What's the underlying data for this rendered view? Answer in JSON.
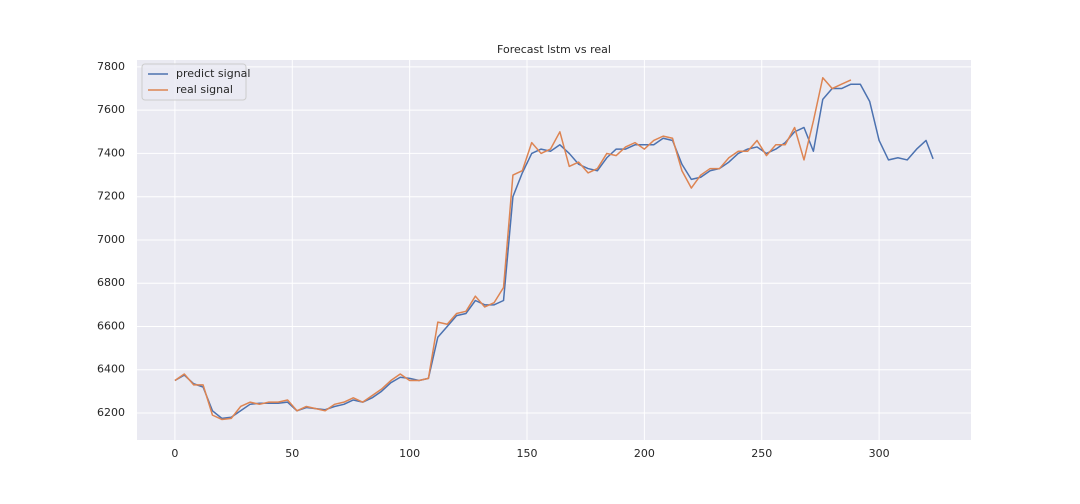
{
  "chart_data": {
    "type": "line",
    "title": "Forecast lstm vs real",
    "x": [
      0,
      4,
      8,
      12,
      16,
      20,
      24,
      28,
      32,
      36,
      40,
      44,
      48,
      52,
      56,
      60,
      64,
      68,
      72,
      76,
      80,
      84,
      88,
      92,
      96,
      100,
      104,
      108,
      112,
      116,
      120,
      124,
      128,
      132,
      136,
      140,
      144,
      148,
      152,
      156,
      160,
      164,
      168,
      172,
      176,
      180,
      184,
      188,
      192,
      196,
      200,
      204,
      208,
      212,
      216,
      220,
      224,
      228,
      232,
      236,
      240,
      244,
      248,
      252,
      256,
      260,
      264,
      268,
      272,
      276,
      280,
      284,
      288,
      292,
      296,
      300,
      304,
      308,
      312,
      316,
      320,
      323
    ],
    "series": [
      {
        "name": "predict signal",
        "color": "#4c72b0",
        "values": [
          6350,
          6375,
          6335,
          6320,
          6210,
          6175,
          6180,
          6210,
          6240,
          6245,
          6245,
          6245,
          6250,
          6210,
          6225,
          6220,
          6215,
          6230,
          6240,
          6260,
          6250,
          6270,
          6300,
          6340,
          6365,
          6360,
          6350,
          6360,
          6550,
          6600,
          6650,
          6660,
          6720,
          6700,
          6700,
          6720,
          7200,
          7310,
          7400,
          7420,
          7410,
          7440,
          7400,
          7350,
          7330,
          7320,
          7380,
          7420,
          7420,
          7440,
          7440,
          7440,
          7470,
          7460,
          7350,
          7280,
          7290,
          7320,
          7330,
          7360,
          7400,
          7420,
          7430,
          7400,
          7420,
          7450,
          7500,
          7520,
          7410,
          7650,
          7700,
          7700,
          7720,
          7720,
          7640,
          7460,
          7370,
          7380,
          7370,
          7420,
          7460,
          7375
        ]
      },
      {
        "name": "real signal",
        "color": "#dd8452",
        "values": [
          6350,
          6380,
          6330,
          6330,
          6190,
          6170,
          6175,
          6230,
          6250,
          6240,
          6250,
          6250,
          6260,
          6210,
          6230,
          6220,
          6210,
          6240,
          6250,
          6270,
          6250,
          6280,
          6310,
          6350,
          6380,
          6350,
          6350,
          6360,
          6620,
          6610,
          6660,
          6670,
          6740,
          6690,
          6710,
          6780,
          7300,
          7320,
          7450,
          7400,
          7420,
          7500,
          7340,
          7360,
          7310,
          7330,
          7400,
          7390,
          7430,
          7450,
          7420,
          7460,
          7480,
          7470,
          7320,
          7240,
          7300,
          7330,
          7330,
          7380,
          7410,
          7410,
          7460,
          7390,
          7440,
          7440,
          7520,
          7370,
          7550,
          7750,
          7700,
          7720,
          7740,
          null,
          null,
          null,
          null,
          null,
          null,
          null,
          null,
          null
        ]
      }
    ],
    "xlim": [
      -16.15,
      339.15
    ],
    "xticks": [
      0,
      50,
      100,
      150,
      200,
      250,
      300
    ],
    "ylim": [
      6075,
      7832
    ],
    "yticks": [
      6200,
      6400,
      6600,
      6800,
      7000,
      7200,
      7400,
      7600,
      7800
    ],
    "grid": true,
    "legend": "upper left"
  }
}
